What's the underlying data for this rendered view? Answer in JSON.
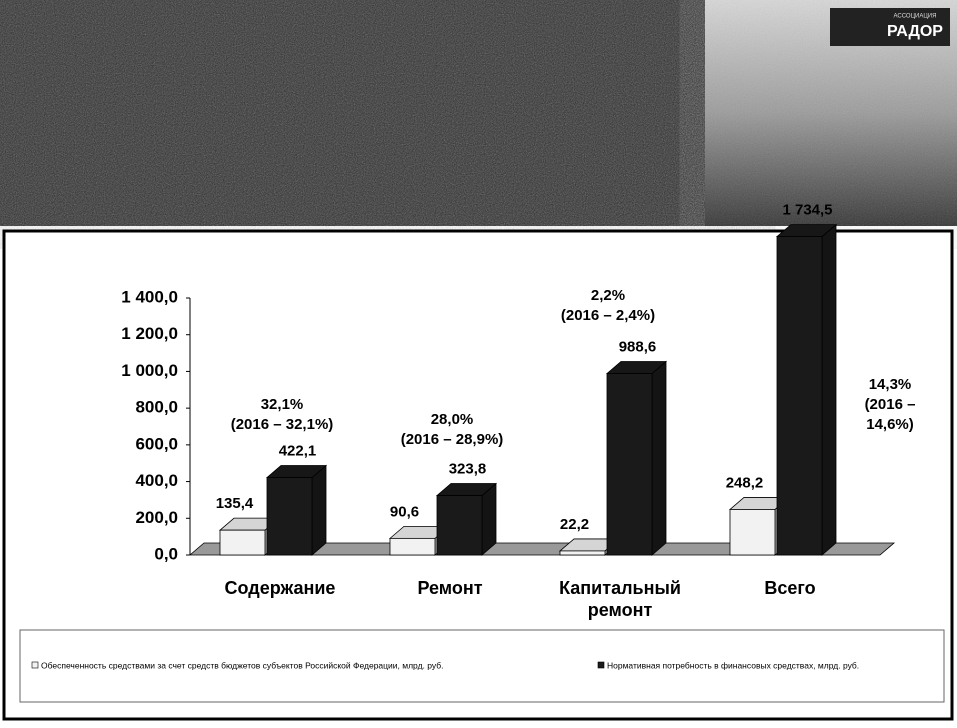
{
  "header": {
    "logo_small": "АССОЦИАЦИЯ",
    "logo": "РАДОР"
  },
  "chart_data": {
    "type": "bar3d",
    "categories": [
      "Содержание",
      "Ремонт",
      "Капитальный ремонт",
      "Всего"
    ],
    "series": [
      {
        "name": "Обеспеченность средствами за счет средств бюджетов субъектов Российской Федерации, млрд. руб.",
        "color": "#f2f2f2",
        "values": [
          135.4,
          90.6,
          22.2,
          248.2
        ],
        "value_labels": [
          "135,4",
          "90,6",
          "22,2",
          "248,2"
        ]
      },
      {
        "name": "Нормативная потребность в финансовых средствах, млрд. руб.",
        "color": "#1a1a1a",
        "values": [
          422.1,
          323.8,
          988.6,
          1734.5
        ],
        "value_labels": [
          "422,1",
          "323,8",
          "988,6",
          "1 734,5"
        ]
      }
    ],
    "ylim": [
      0,
      1400
    ],
    "yticks": [
      {
        "value": 0,
        "label": "0,0"
      },
      {
        "value": 200,
        "label": "200,0"
      },
      {
        "value": 400,
        "label": "400,0"
      },
      {
        "value": 600,
        "label": "600,0"
      },
      {
        "value": 800,
        "label": "800,0"
      },
      {
        "value": 1000,
        "label": "1 000,0"
      },
      {
        "value": 1200,
        "label": "1 200,0"
      },
      {
        "value": 1400,
        "label": "1 400,0"
      }
    ],
    "annotations": [
      [
        "32,1%",
        "(2016 – 32,1%)"
      ],
      [
        "28,0%",
        "(2016 – 28,9%)"
      ],
      [
        "2,2%",
        "(2016 – 2,4%)"
      ],
      [
        "14,3%",
        "(2016 –",
        "14,6%)"
      ]
    ]
  }
}
